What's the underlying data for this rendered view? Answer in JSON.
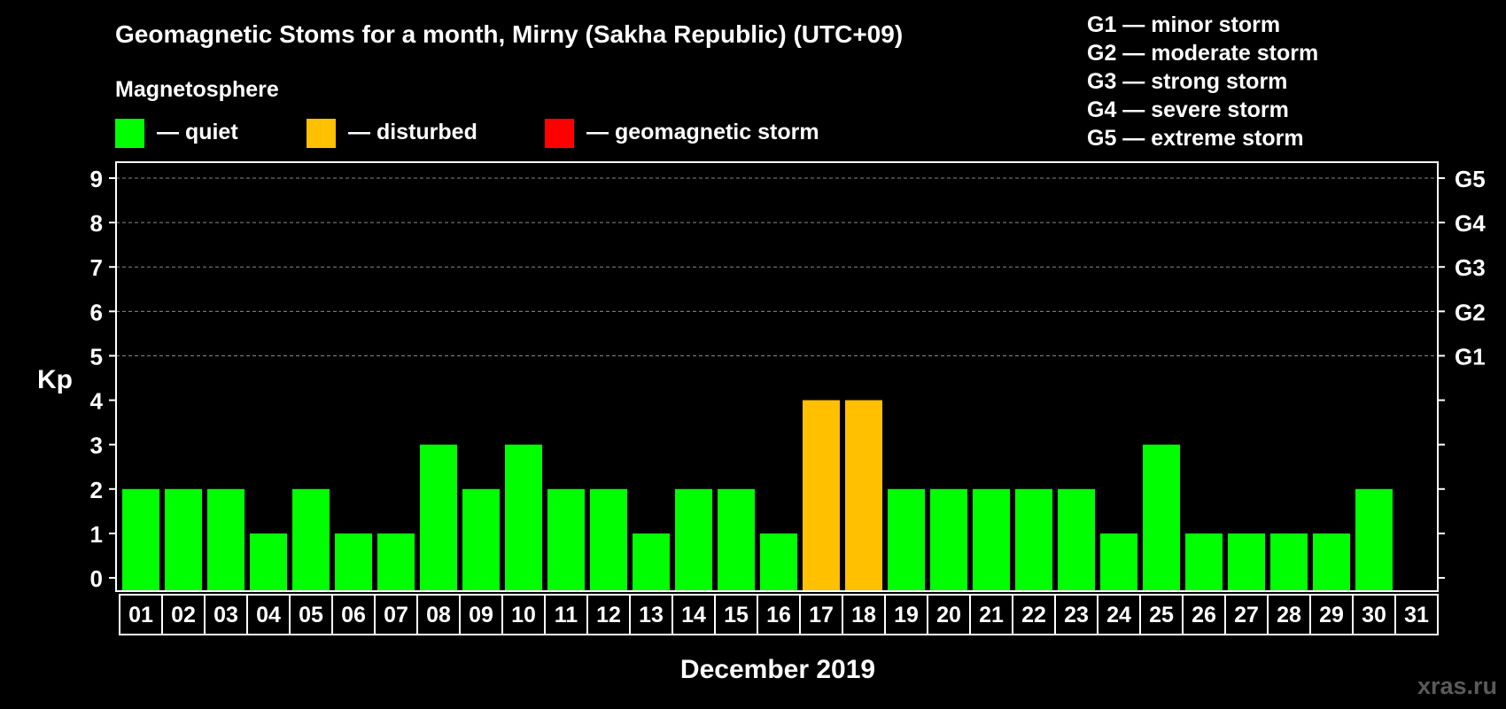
{
  "colors": {
    "background": "#000000",
    "quiet": "#00ff00",
    "disturbed": "#ffc000",
    "storm": "#ff0000",
    "axis": "#ffffff",
    "grid": "#888888",
    "watermark": "#5a5a5a"
  },
  "header": {
    "title": "Geomagnetic Stoms for a month, Mirny (Sakha Republic) (UTC+09)",
    "magnetosphere": "Magnetosphere"
  },
  "legend": [
    {
      "label": "— quiet",
      "color": "#00ff00"
    },
    {
      "label": "— disturbed",
      "color": "#ffc000"
    },
    {
      "label": "— geomagnetic storm",
      "color": "#ff0000"
    }
  ],
  "storm_levels": [
    "G1 — minor storm",
    "G2 — moderate storm",
    "G3 — strong storm",
    "G4 — severe storm",
    "G5 — extreme storm"
  ],
  "watermark": "xras.ru",
  "chart_data": {
    "type": "bar",
    "title": "Geomagnetic Stoms for a month, Mirny (Sakha Republic) (UTC+09)",
    "xlabel": "December 2019",
    "ylabel": "Kp",
    "ylim": [
      0,
      9
    ],
    "yticks": [
      "0",
      "1",
      "2",
      "3",
      "4",
      "5",
      "6",
      "7",
      "8",
      "9"
    ],
    "right_ticks": [
      {
        "kp": 5,
        "label": "G1"
      },
      {
        "kp": 6,
        "label": "G2"
      },
      {
        "kp": 7,
        "label": "G3"
      },
      {
        "kp": 8,
        "label": "G4"
      },
      {
        "kp": 9,
        "label": "G5"
      }
    ],
    "grid": "dashed horizontal at Kp 5-9",
    "categories": [
      "01",
      "02",
      "03",
      "04",
      "05",
      "06",
      "07",
      "08",
      "09",
      "10",
      "11",
      "12",
      "13",
      "14",
      "15",
      "16",
      "17",
      "18",
      "19",
      "20",
      "21",
      "22",
      "23",
      "24",
      "25",
      "26",
      "27",
      "28",
      "29",
      "30",
      "31"
    ],
    "values": [
      2,
      2,
      2,
      1,
      2,
      1,
      1,
      3,
      2,
      3,
      2,
      2,
      1,
      2,
      2,
      1,
      4,
      4,
      2,
      2,
      2,
      2,
      2,
      1,
      3,
      1,
      1,
      1,
      1,
      2,
      null
    ],
    "status": [
      "quiet",
      "quiet",
      "quiet",
      "quiet",
      "quiet",
      "quiet",
      "quiet",
      "quiet",
      "quiet",
      "quiet",
      "quiet",
      "quiet",
      "quiet",
      "quiet",
      "quiet",
      "quiet",
      "disturbed",
      "disturbed",
      "quiet",
      "quiet",
      "quiet",
      "quiet",
      "quiet",
      "quiet",
      "quiet",
      "quiet",
      "quiet",
      "quiet",
      "quiet",
      "quiet",
      null
    ]
  }
}
